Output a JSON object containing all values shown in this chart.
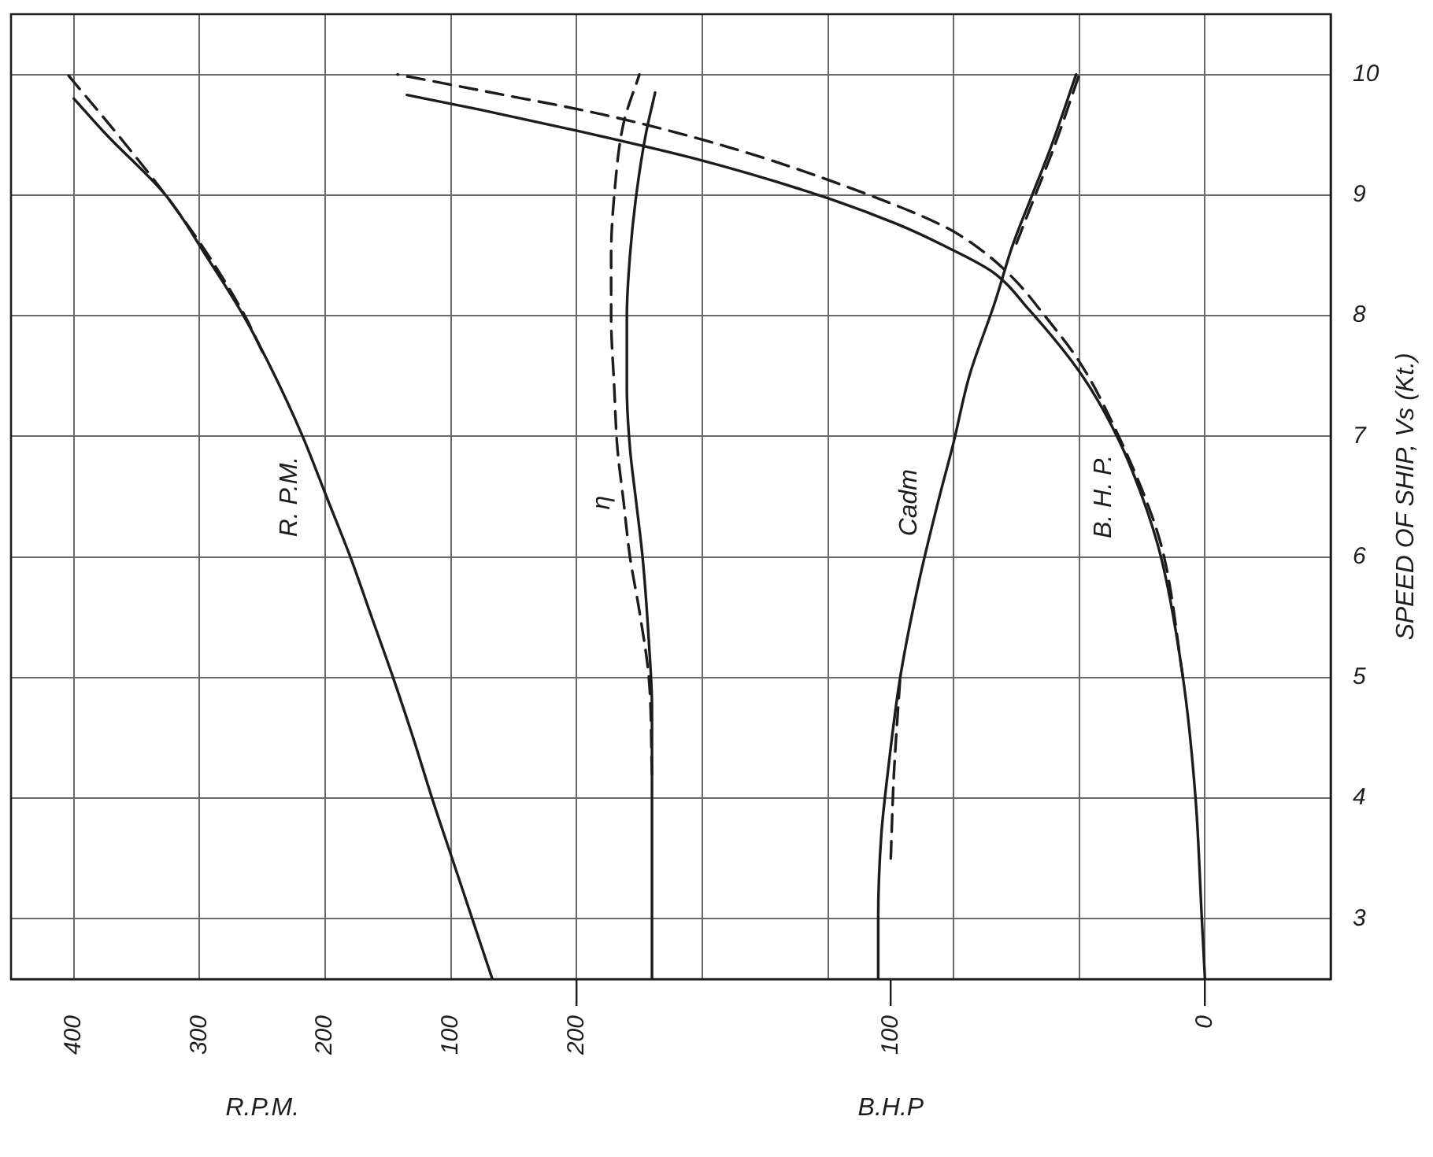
{
  "chart_data": {
    "type": "line",
    "orientation": "horizontal",
    "xlabel": "R.P.M.",
    "x2label": "B.H.P",
    "ylabel": "SPEED OF SHIP, Vs (Kt.)",
    "xlim": [
      450,
      -600
    ],
    "xticks": [
      {
        "value": -500,
        "label": null
      },
      {
        "value": -400,
        "label": null
      },
      {
        "value": -300,
        "label": null
      },
      {
        "value": -200,
        "label": null
      },
      {
        "value": -100,
        "label": null
      },
      {
        "value": 0,
        "label": null
      },
      100,
      200,
      300,
      400
    ],
    "x2lim": [
      380,
      -40
    ],
    "x2ticks": [
      0,
      100,
      200
    ],
    "ylim": [
      2.5,
      10.5
    ],
    "yticks": [
      3,
      4,
      5,
      6,
      7,
      8,
      9,
      10
    ],
    "grid": true,
    "marker": "none",
    "series": [
      {
        "name": "R. P.M.",
        "color": "#1c1c1c",
        "line_style": "solid",
        "x": [
          2.5,
          3,
          3.5,
          4,
          4.5,
          5,
          5.5,
          6,
          6.5,
          7,
          7.5,
          8,
          8.5,
          9,
          9.5,
          9.8
        ],
        "values": [
          67,
          83,
          99,
          115,
          130,
          146,
          163,
          180,
          199,
          218,
          240,
          265,
          295,
          327,
          374,
          400
        ]
      },
      {
        "color": "#1c1c1c",
        "line_style": "dashed",
        "x": [
          7.7,
          8,
          8.5,
          9,
          9.5,
          10
        ],
        "values": [
          250,
          264,
          293,
          327,
          365,
          405
        ]
      },
      {
        "name": "η",
        "color": "#1c1c1c",
        "axis": "x2",
        "line_style": "solid",
        "x": [
          2.5,
          4,
          4.75,
          5.3,
          6,
          6.45,
          6.9,
          7.4,
          8,
          8.5,
          9,
          9.5,
          9.85
        ],
        "values": [
          176,
          176,
          176,
          177,
          179,
          181,
          183,
          184,
          184,
          183,
          181,
          178,
          175
        ]
      },
      {
        "color": "#1c1c1c",
        "axis": "x2",
        "line_style": "dashed",
        "x": [
          4.2,
          5,
          5.55,
          6,
          6.45,
          6.9,
          7.4,
          8,
          8.5,
          9,
          9.6,
          10
        ],
        "values": [
          176,
          177,
          180,
          183,
          185,
          187,
          188,
          189,
          189,
          188,
          185,
          180
        ]
      },
      {
        "name": "Cadm",
        "color": "#1c1c1c",
        "axis": "x2",
        "line_style": "solid",
        "x": [
          2.5,
          3,
          3.7,
          4.2,
          5,
          5.8,
          6.45,
          6.95,
          7.5,
          8.1,
          8.6,
          9,
          9.4,
          10
        ],
        "values": [
          104,
          104,
          103,
          101,
          97,
          91,
          85,
          80,
          75,
          67,
          61,
          55,
          49,
          41
        ]
      },
      {
        "color": "#1c1c1c",
        "axis": "x2",
        "line_style": "dashed",
        "x": [
          3.5,
          4.2,
          5,
          null,
          8.6,
          9,
          9.4,
          10
        ],
        "values": [
          100,
          99,
          97,
          null,
          60,
          54,
          48,
          40
        ]
      },
      {
        "name": "B. H. P.",
        "color": "#1c1c1c",
        "axis": "x2",
        "line_style": "solid",
        "x": [
          2.5,
          3,
          4,
          5,
          6,
          6.5,
          7,
          7.5,
          8.05,
          8.37,
          8.58,
          8.76,
          9,
          9.3,
          9.54,
          9.71,
          9.83
        ],
        "values": [
          0,
          1,
          3,
          7,
          14,
          20,
          28,
          39,
          56,
          68,
          83,
          98,
          123,
          162,
          201,
          231,
          254
        ]
      },
      {
        "color": "#1c1c1c",
        "axis": "x2",
        "line_style": "dashed",
        "x": [
          5,
          6,
          6.35,
          7.14,
          7.62,
          8,
          8.31,
          8.54,
          8.74,
          9.06,
          9.4,
          9.67,
          9.86,
          10
        ],
        "values": [
          7,
          13,
          17,
          30,
          40,
          51,
          61,
          71,
          83,
          113,
          152,
          192,
          229,
          257
        ]
      }
    ]
  }
}
